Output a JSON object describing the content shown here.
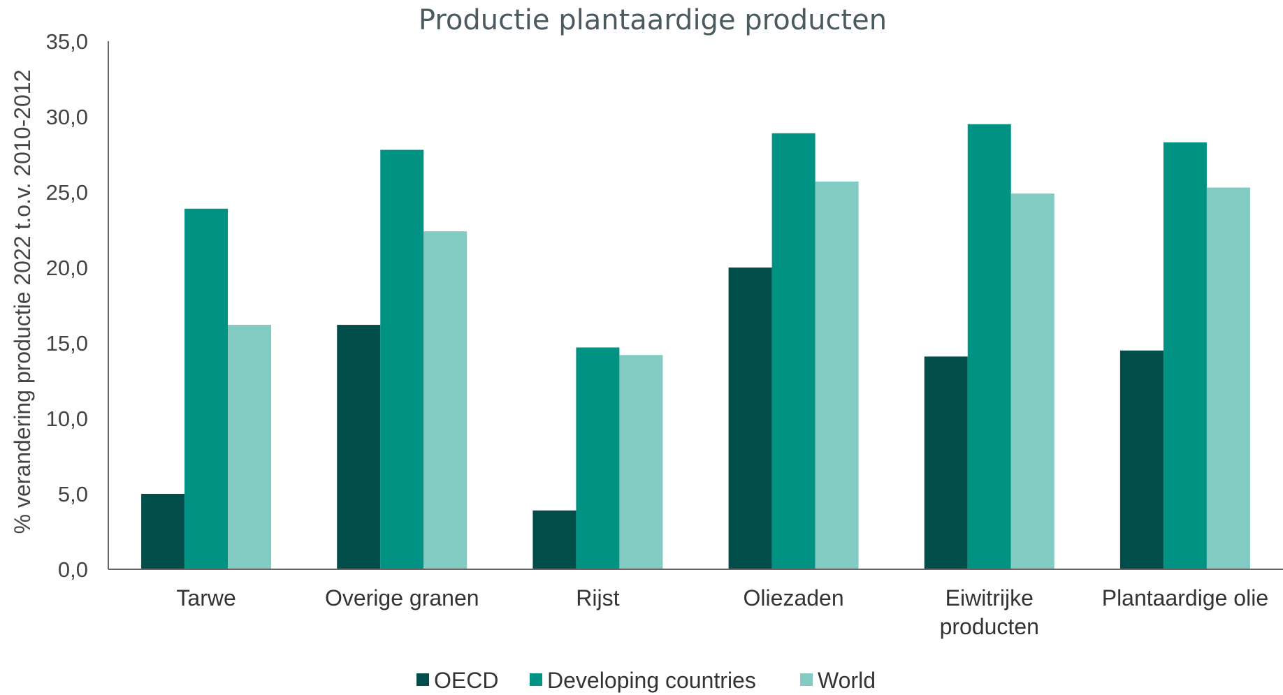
{
  "chart_data": {
    "type": "bar",
    "title": "Productie plantaardige producten",
    "ylabel": "% verandering productie 2022 t.o.v. 2010-2012",
    "xlabel": "",
    "ylim": [
      0,
      35
    ],
    "yticks": [
      "0,0",
      "5,0",
      "10,0",
      "15,0",
      "20,0",
      "25,0",
      "30,0",
      "35,0"
    ],
    "grid": false,
    "legend_position": "bottom",
    "categories": [
      [
        "Tarwe"
      ],
      [
        "Overige granen"
      ],
      [
        "Rijst"
      ],
      [
        "Oliezaden"
      ],
      [
        "Eiwitrijke",
        "producten"
      ],
      [
        "Plantaardige olie"
      ]
    ],
    "series": [
      {
        "name": "OECD",
        "color": "#004d4a",
        "values": [
          5.0,
          16.2,
          3.9,
          20.0,
          14.1,
          14.5
        ]
      },
      {
        "name": "Developing countries",
        "color": "#009384",
        "values": [
          23.9,
          27.8,
          14.7,
          28.9,
          29.5,
          28.3
        ]
      },
      {
        "name": "World",
        "color": "#82cbc3",
        "values": [
          16.2,
          22.4,
          14.2,
          25.7,
          24.9,
          25.3
        ]
      }
    ]
  }
}
